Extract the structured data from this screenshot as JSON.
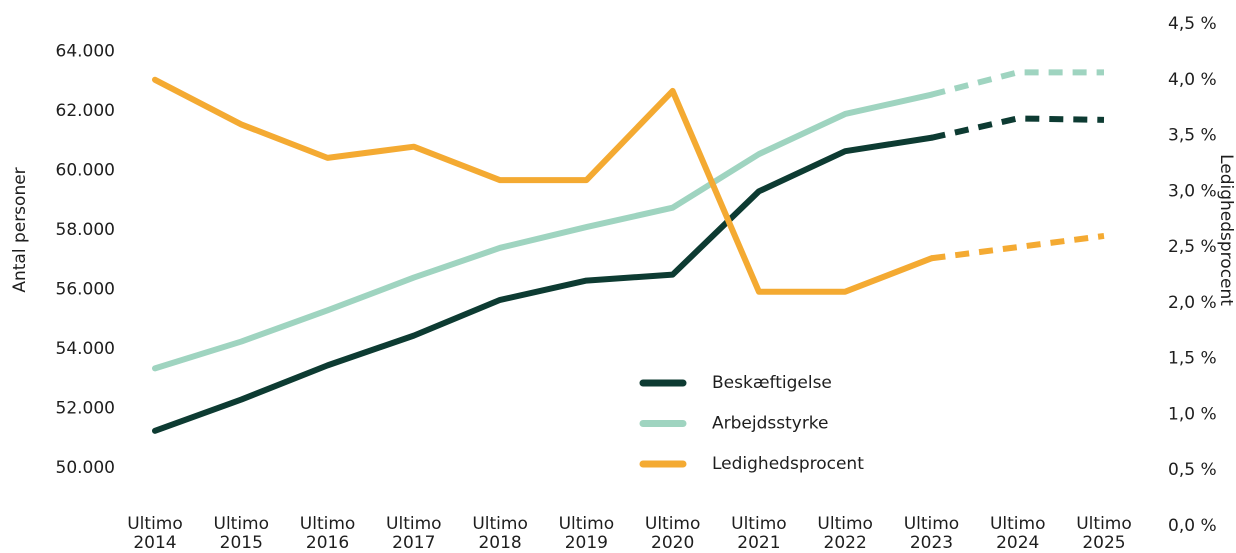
{
  "chart_data": {
    "type": "line",
    "categories": [
      "Ultimo 2014",
      "Ultimo 2015",
      "Ultimo 2016",
      "Ultimo 2017",
      "Ultimo 2018",
      "Ultimo 2019",
      "Ultimo 2020",
      "Ultimo 2021",
      "Ultimo 2022",
      "Ultimo 2023",
      "Ultimo 2024",
      "Ultimo 2025"
    ],
    "forecast_start": 9,
    "ylabel": "Antal personer",
    "y2label": "Ledighedsprocent",
    "ylim": [
      50000,
      64000
    ],
    "yticks": [
      {
        "value": 50000,
        "label": "50.000"
      },
      {
        "value": 52000,
        "label": "52.000"
      },
      {
        "value": 54000,
        "label": "54.000"
      },
      {
        "value": 56000,
        "label": "56.000"
      },
      {
        "value": 58000,
        "label": "58.000"
      },
      {
        "value": 60000,
        "label": "60.000"
      },
      {
        "value": 62000,
        "label": "62.000"
      },
      {
        "value": 64000,
        "label": "64.000"
      }
    ],
    "y2lim": [
      0,
      4.5
    ],
    "y2ticks": [
      {
        "value": 0,
        "label": "0,0 %"
      },
      {
        "value": 0.5,
        "label": "0,5 %"
      },
      {
        "value": 1,
        "label": "1,0 %"
      },
      {
        "value": 1.5,
        "label": "1,5 %"
      },
      {
        "value": 2,
        "label": "2,0 %"
      },
      {
        "value": 2.5,
        "label": "2,5 %"
      },
      {
        "value": 3,
        "label": "3,0 %"
      },
      {
        "value": 3.5,
        "label": "3,5 %"
      },
      {
        "value": 4,
        "label": "4,0 %"
      },
      {
        "value": 4.5,
        "label": "4,5 %"
      }
    ],
    "grid": false,
    "legend": "center",
    "series": [
      {
        "name": "Beskæftigelse",
        "color": "#0d3b32",
        "values": [
          51250,
          52300,
          53450,
          54450,
          55650,
          56300,
          56500,
          59300,
          60650,
          61100,
          61750,
          61700
        ]
      },
      {
        "name": "Arbejdsstyrke",
        "color": "#9fd4c0",
        "values": [
          53350,
          54250,
          55300,
          56400,
          57400,
          58100,
          58750,
          60550,
          61900,
          62550,
          63300,
          63300
        ]
      },
      {
        "name": "Ledighedsprocent",
        "color": "#f4aa32",
        "axis": "y2",
        "values": [
          4.0,
          3.6,
          3.3,
          3.4,
          3.1,
          3.1,
          3.9,
          2.1,
          2.1,
          2.4,
          2.5,
          2.6
        ]
      }
    ]
  }
}
